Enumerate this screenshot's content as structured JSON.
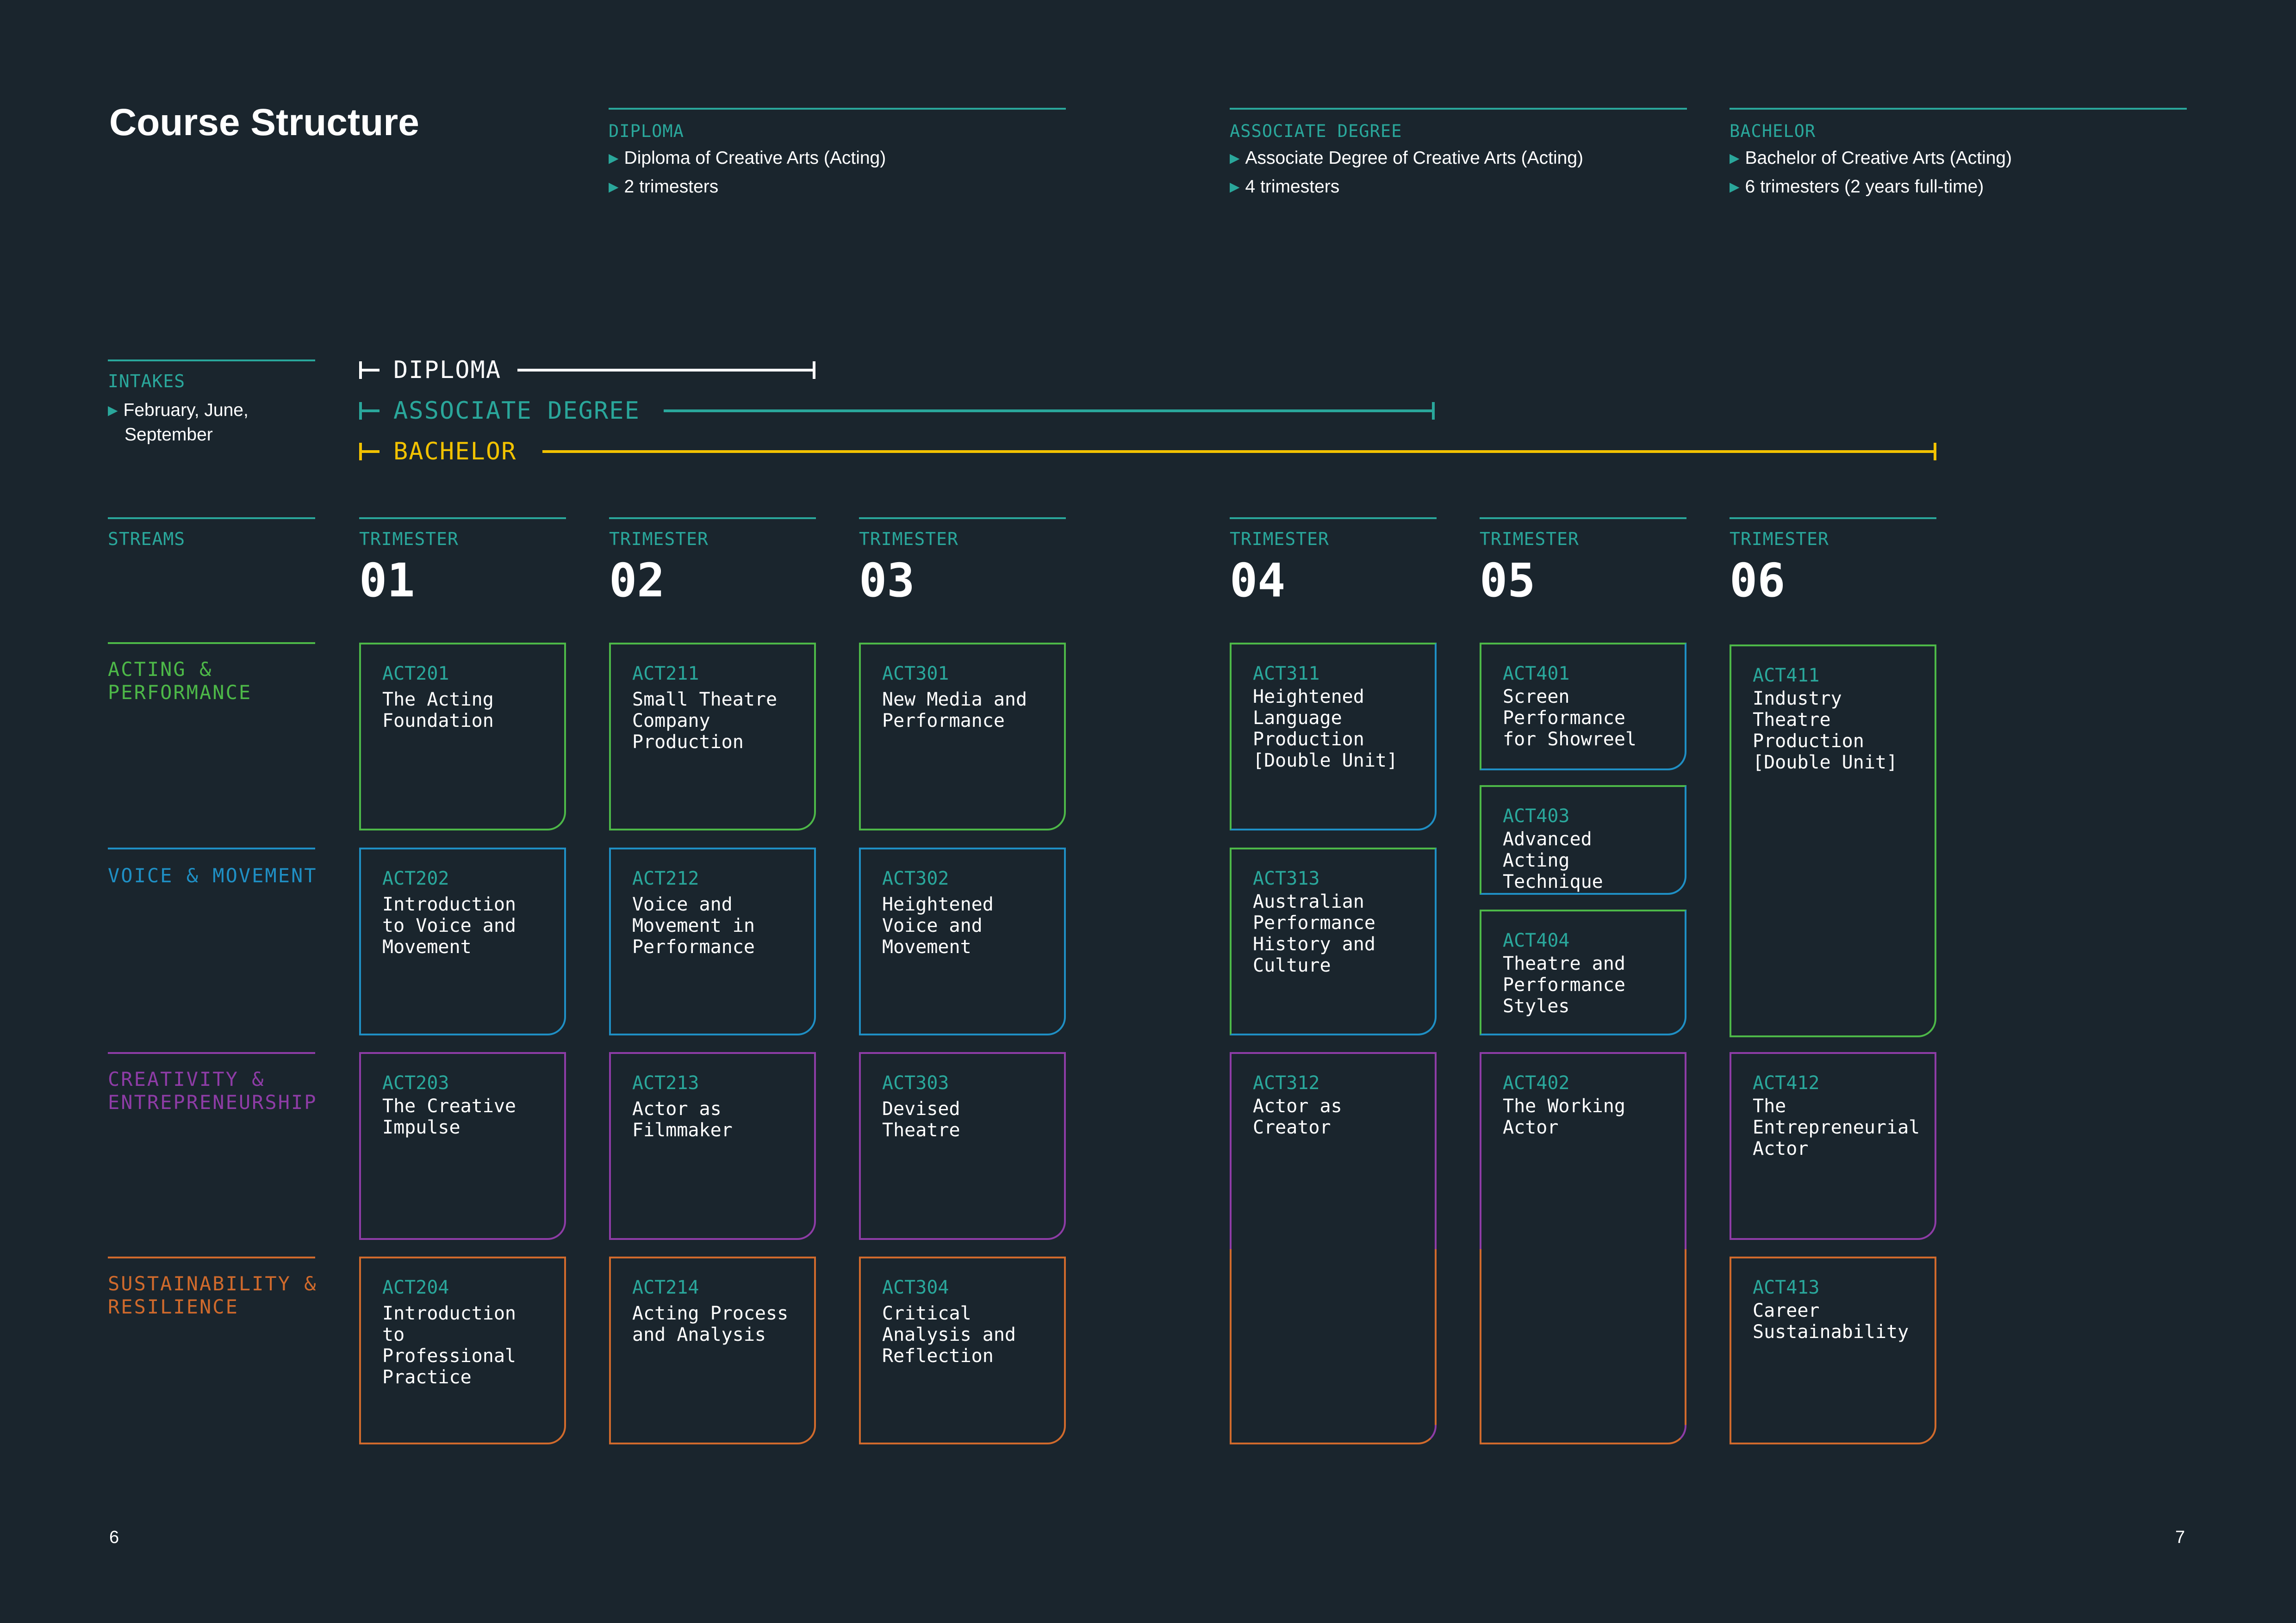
{
  "page": {
    "title": "Course Structure",
    "page_left": "6",
    "page_right": "7"
  },
  "colors": {
    "background": "#1a252d",
    "teal": "#2aa79b",
    "white": "#ffffff",
    "green": "#4db848",
    "blue": "#1f8fc4",
    "purple": "#8e3ca6",
    "orange": "#d06a2c",
    "yellow": "#f2c200"
  },
  "degrees": [
    {
      "head": "DIPLOMA",
      "items": [
        "Diploma of Creative Arts (Acting)",
        "2 trimesters"
      ]
    },
    {
      "head": "ASSOCIATE DEGREE",
      "items": [
        "Associate Degree of Creative Arts (Acting)",
        "4 trimesters"
      ]
    },
    {
      "head": "BACHELOR",
      "items": [
        "Bachelor of Creative Arts (Acting)",
        "6 trimesters (2 years full-time)"
      ]
    }
  ],
  "intakes": {
    "head": "INTAKES",
    "item_line1": "February, June,",
    "item_line2": "September"
  },
  "programs": [
    {
      "label": "DIPLOMA",
      "color": "#ffffff",
      "trimesters": 2
    },
    {
      "label": "ASSOCIATE DEGREE",
      "color": "#2aa79b",
      "trimesters": 4
    },
    {
      "label": "BACHELOR",
      "color": "#f2c200",
      "trimesters": 6
    }
  ],
  "streams": {
    "head": "STREAMS",
    "items": [
      {
        "line1": "ACTING &",
        "line2": "PERFORMANCE",
        "color": "#4db848"
      },
      {
        "line1": "VOICE & MOVEMENT",
        "line2": "",
        "color": "#1f8fc4"
      },
      {
        "line1": "CREATIVITY &",
        "line2": "ENTREPRENEURSHIP",
        "color": "#8e3ca6"
      },
      {
        "line1": "SUSTAINABILITY &",
        "line2": "RESILIENCE",
        "color": "#d06a2c"
      }
    ]
  },
  "trimesters": [
    {
      "head": "TRIMESTER",
      "num": "01"
    },
    {
      "head": "TRIMESTER",
      "num": "02"
    },
    {
      "head": "TRIMESTER",
      "num": "03"
    },
    {
      "head": "TRIMESTER",
      "num": "04"
    },
    {
      "head": "TRIMESTER",
      "num": "05"
    },
    {
      "head": "TRIMESTER",
      "num": "06"
    }
  ],
  "units": [
    {
      "code": "ACT201",
      "name": "The Acting\nFoundation"
    },
    {
      "code": "ACT202",
      "name": "Introduction\nto Voice and\nMovement"
    },
    {
      "code": "ACT203",
      "name": "The Creative\nImpulse"
    },
    {
      "code": "ACT204",
      "name": "Introduction\nto\nProfessional\nPractice"
    },
    {
      "code": "ACT211",
      "name": "Small Theatre\nCompany\nProduction"
    },
    {
      "code": "ACT212",
      "name": "Voice and\nMovement in\nPerformance"
    },
    {
      "code": "ACT213",
      "name": "Actor as\nFilmmaker"
    },
    {
      "code": "ACT214",
      "name": "Acting Process\nand Analysis"
    },
    {
      "code": "ACT301",
      "name": "New Media and\nPerformance"
    },
    {
      "code": "ACT302",
      "name": "Heightened\nVoice and\nMovement"
    },
    {
      "code": "ACT303",
      "name": "Devised\nTheatre"
    },
    {
      "code": "ACT304",
      "name": "Critical\nAnalysis and\nReflection"
    },
    {
      "code": "ACT311",
      "name": "Heightened\nLanguage\nProduction\n[Double Unit]"
    },
    {
      "code": "ACT313",
      "name": "Australian\nPerformance\nHistory and\nCulture"
    },
    {
      "code": "ACT312",
      "name": "Actor as\nCreator"
    },
    {
      "code": "ACT401",
      "name": "Screen\nPerformance\nfor Showreel"
    },
    {
      "code": "ACT403",
      "name": "Advanced Acting\nTechnique"
    },
    {
      "code": "ACT404",
      "name": "Theatre and\nPerformance\nStyles"
    },
    {
      "code": "ACT402",
      "name": "The Working\nActor"
    },
    {
      "code": "ACT411",
      "name": "Industry\nTheatre\nProduction\n[Double Unit]"
    },
    {
      "code": "ACT412",
      "name": "The\nEntrepreneurial\nActor"
    },
    {
      "code": "ACT413",
      "name": "Career\nSustainability"
    }
  ]
}
